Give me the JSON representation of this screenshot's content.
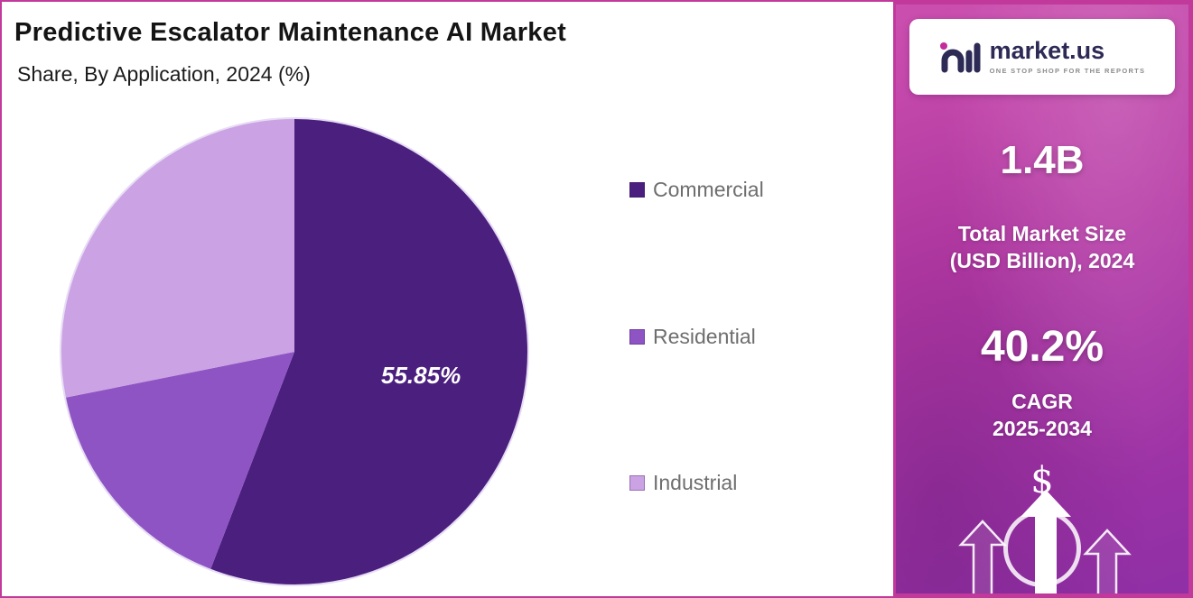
{
  "chart_data": {
    "type": "pie",
    "title": "Predictive Escalator Maintenance  AI Market",
    "subtitle": "Share, By Application, 2024 (%)",
    "legend_position": "right",
    "start_angle": "top, clockwise",
    "note": "Only the Commercial slice is labeled (55.85%); Residential and Industrial values are estimated from arc angles.",
    "slices": [
      {
        "label": "Commercial",
        "value": 55.85,
        "display_label": "55.85%",
        "color": "#4a1f7e"
      },
      {
        "label": "Residential",
        "value": 16.0,
        "display_label": "",
        "color": "#8e54c4"
      },
      {
        "label": "Industrial",
        "value": 28.15,
        "display_label": "",
        "color": "#cba2e3"
      }
    ]
  },
  "sidebar": {
    "brand": "market.us",
    "tagline": "ONE STOP SHOP FOR THE REPORTS",
    "market_size_value": "1.4B",
    "market_size_label_line1": "Total Market Size",
    "market_size_label_line2": "(USD Billion), 2024",
    "cagr_value": "40.2%",
    "cagr_label_line1": "CAGR",
    "cagr_label_line2": "2025-2034",
    "dollar_symbol": "$"
  },
  "colors": {
    "border_accent": "#c1399b",
    "panel_gradient_top": "#cb4fae",
    "panel_gradient_bottom": "#8f2fa6",
    "logo_navy": "#2d2a55",
    "legend_text": "#6e6e6e"
  }
}
